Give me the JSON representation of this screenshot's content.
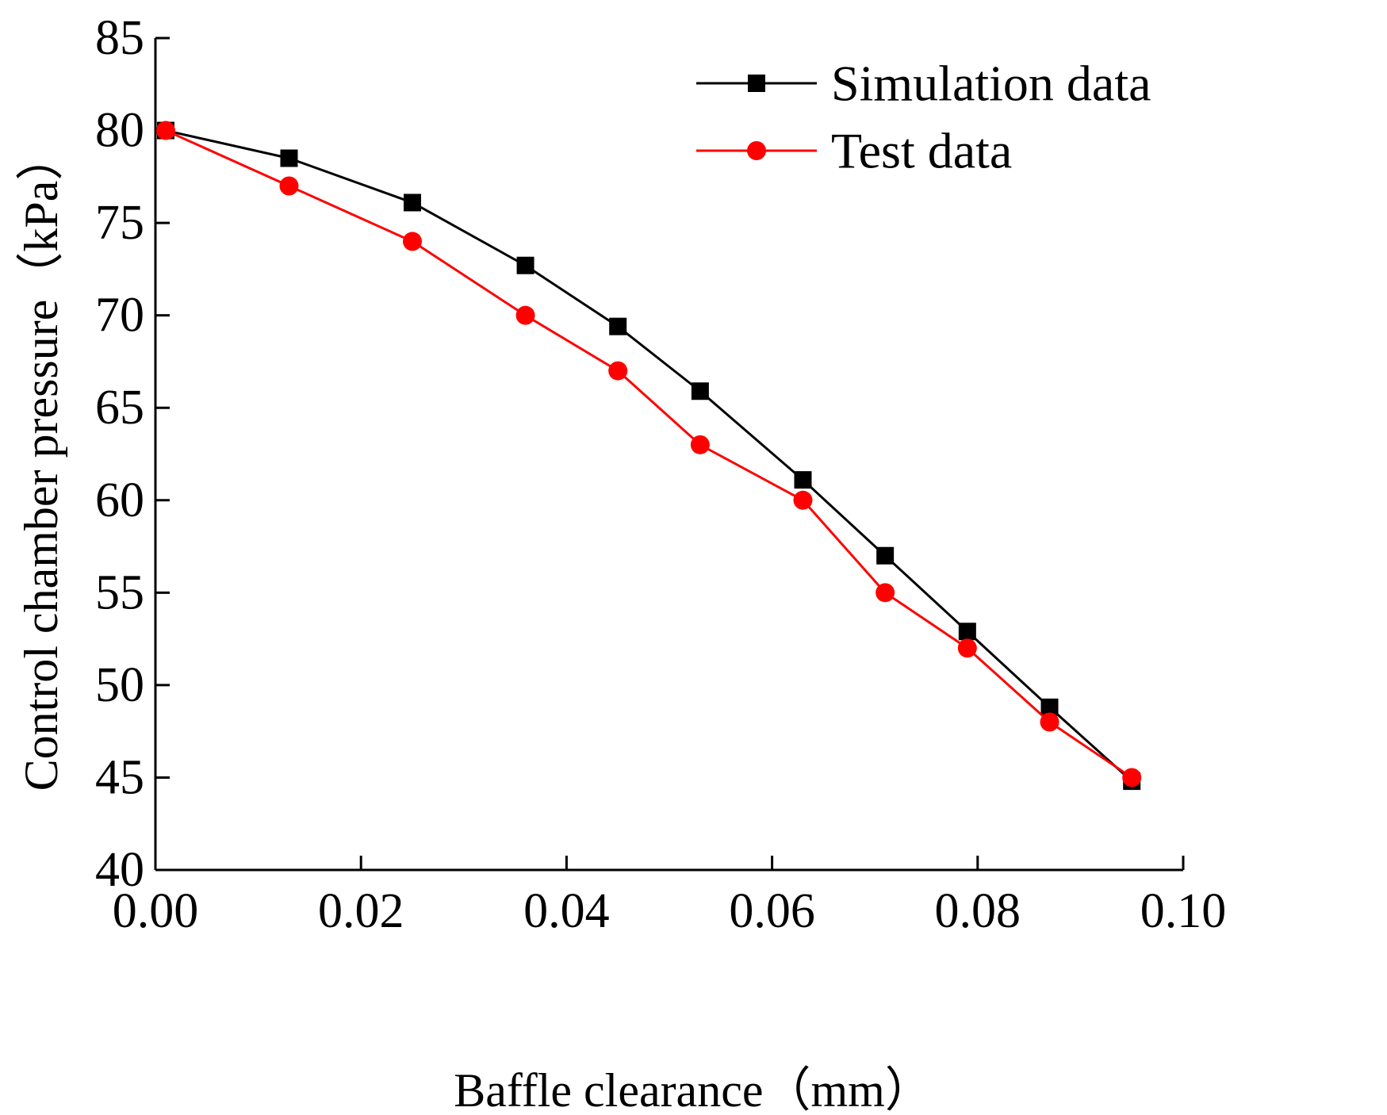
{
  "chart_data": {
    "type": "line",
    "title": "",
    "xlabel": "Baffle clearance（mm）",
    "ylabel": "Control chamber pressure（kPa）",
    "xlim": [
      0.0,
      0.1
    ],
    "ylim": [
      40,
      85
    ],
    "xticks": [
      "0.00",
      "0.02",
      "0.04",
      "0.06",
      "0.08",
      "0.10"
    ],
    "xtick_values": [
      0.0,
      0.02,
      0.04,
      0.06,
      0.08,
      0.1
    ],
    "yticks": [
      "40",
      "45",
      "50",
      "55",
      "60",
      "65",
      "70",
      "75",
      "80",
      "85"
    ],
    "ytick_values": [
      40,
      45,
      50,
      55,
      60,
      65,
      70,
      75,
      80,
      85
    ],
    "grid": false,
    "legend_position": "top-right",
    "series": [
      {
        "name": "Simulation data",
        "color": "#000000",
        "marker": "square",
        "x": [
          0.001,
          0.013,
          0.025,
          0.036,
          0.045,
          0.053,
          0.063,
          0.071,
          0.079,
          0.087,
          0.095
        ],
        "y": [
          80.0,
          78.5,
          76.1,
          72.7,
          69.4,
          65.9,
          61.1,
          57.0,
          52.9,
          48.8,
          44.8
        ]
      },
      {
        "name": "Test data",
        "color": "#ff0000",
        "marker": "circle",
        "x": [
          0.001,
          0.013,
          0.025,
          0.036,
          0.045,
          0.053,
          0.063,
          0.071,
          0.079,
          0.087,
          0.095
        ],
        "y": [
          80.0,
          77.0,
          74.0,
          70.0,
          67.0,
          63.0,
          60.0,
          55.0,
          52.0,
          48.0,
          45.0
        ]
      }
    ]
  }
}
